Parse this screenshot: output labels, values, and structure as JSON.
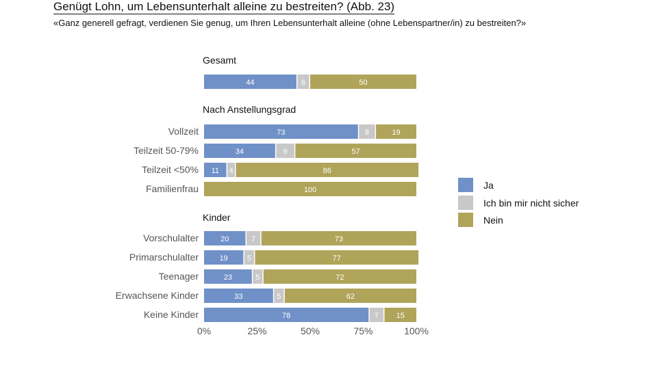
{
  "title": "Genügt Lohn, um Lebensunterhalt alleine zu bestreiten?  (Abb. 23)",
  "subtitle": "«Ganz generell gefragt, verdienen Sie genug, um Ihren Lebensunterhalt alleine (ohne Lebenspartner/in) zu bestreiten?»",
  "colors": {
    "ja": "#7090c8",
    "unsicher": "#c8c8c8",
    "nein": "#b0a45a"
  },
  "legend": [
    {
      "label": "Ja",
      "color": "#7090c8"
    },
    {
      "label": "Ich bin mir nicht sicher",
      "color": "#c8c8c8"
    },
    {
      "label": "Nein",
      "color": "#b0a45a"
    }
  ],
  "chart_data": {
    "type": "bar",
    "orientation": "horizontal",
    "stacked": "percent",
    "xlim": [
      0,
      100
    ],
    "xticks": [
      "0%",
      "25%",
      "50%",
      "75%",
      "100%"
    ],
    "legend_position": "right",
    "grid": false,
    "groups": [
      {
        "label": "Gesamt",
        "categories": [
          ""
        ],
        "series": [
          {
            "name": "Ja",
            "values": [
              44
            ]
          },
          {
            "name": "Ich bin mir nicht sicher",
            "values": [
              6
            ]
          },
          {
            "name": "Nein",
            "values": [
              50
            ]
          }
        ]
      },
      {
        "label": "Nach Anstellungsgrad",
        "categories": [
          "Vollzeit",
          "Teilzeit 50-79%",
          "Teilzeit <50%",
          "Familienfrau"
        ],
        "series": [
          {
            "name": "Ja",
            "values": [
              73,
              34,
              11,
              0
            ]
          },
          {
            "name": "Ich bin mir nicht sicher",
            "values": [
              8,
              9,
              4,
              0
            ]
          },
          {
            "name": "Nein",
            "values": [
              19,
              57,
              86,
              100
            ]
          }
        ]
      },
      {
        "label": "Kinder",
        "categories": [
          "Vorschulalter",
          "Primarschulalter",
          "Teenager",
          "Erwachsene Kinder",
          "Keine Kinder"
        ],
        "series": [
          {
            "name": "Ja",
            "values": [
              20,
              19,
              23,
              33,
              78
            ]
          },
          {
            "name": "Ich bin mir nicht sicher",
            "values": [
              7,
              5,
              5,
              5,
              7
            ]
          },
          {
            "name": "Nein",
            "values": [
              73,
              77,
              72,
              62,
              15
            ]
          }
        ]
      }
    ]
  }
}
